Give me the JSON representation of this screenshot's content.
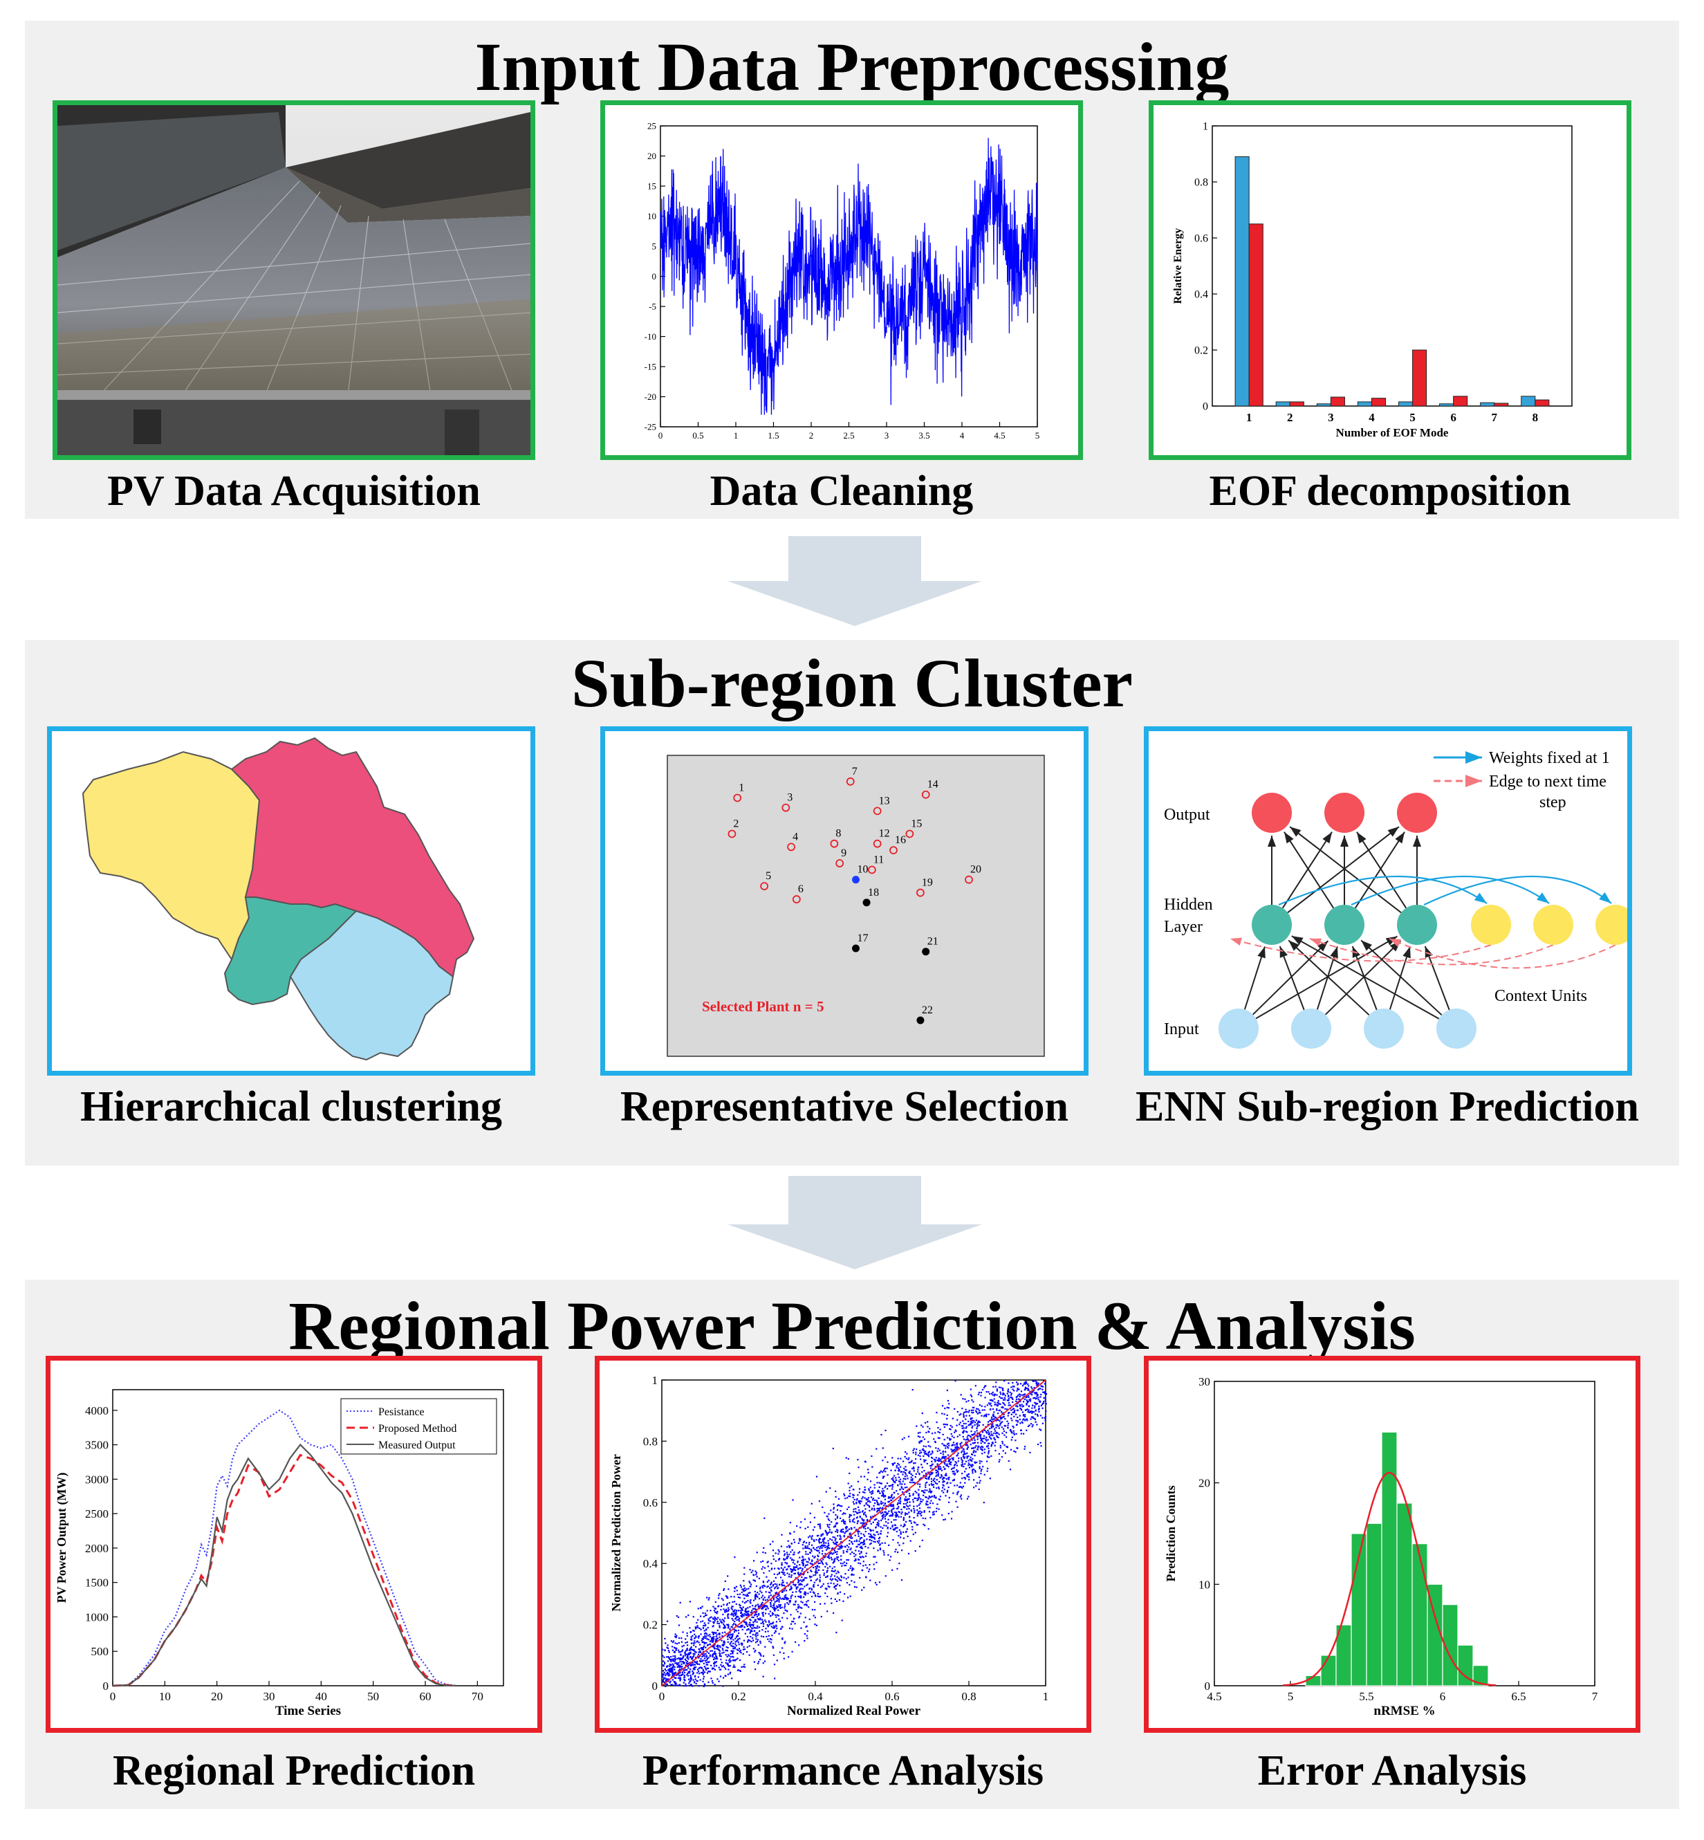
{
  "sections": {
    "preprocessing": {
      "title": "Input Data Preprocessing",
      "captions": [
        "PV Data Acquisition",
        "Data Cleaning",
        "EOF decomposition"
      ]
    },
    "cluster": {
      "title": "Sub-region Cluster",
      "captions": [
        "Hierarchical clustering",
        "Representative Selection",
        "ENN Sub-region Prediction"
      ]
    },
    "prediction": {
      "title": "Regional Power Prediction & Analysis",
      "captions": [
        "Regional Prediction",
        "Performance Analysis",
        "Error Analysis"
      ]
    }
  },
  "colors": {
    "green_border": "#21b14b",
    "blue_border": "#22aee8",
    "red_border": "#e8202a",
    "arrow": "#d5dee7",
    "section_bg": "#f0f0f0"
  },
  "cleaning_chart": {
    "type": "line",
    "x_ticks": [
      "0",
      "0.5",
      "1",
      "1.5",
      "2",
      "2.5",
      "3",
      "3.5",
      "4",
      "4.5",
      "5"
    ],
    "y_ticks": [
      "25",
      "20",
      "15",
      "10",
      "5",
      "0",
      "-5",
      "-10",
      "-15",
      "-20",
      "-25"
    ],
    "xlim": [
      0,
      5
    ],
    "ylim": [
      -25,
      25
    ],
    "series_color": "#0000ff"
  },
  "eof_chart": {
    "type": "bar",
    "categories": [
      "1",
      "2",
      "3",
      "4",
      "5",
      "6",
      "7",
      "8"
    ],
    "series": [
      {
        "color": "#36a2d8",
        "values": [
          0.89,
          0.015,
          0.008,
          0.015,
          0.015,
          0.008,
          0.012,
          0.035
        ]
      },
      {
        "color": "#e8202a",
        "values": [
          0.65,
          0.015,
          0.032,
          0.028,
          0.2,
          0.035,
          0.01,
          0.022
        ]
      }
    ],
    "y_ticks": [
      "0",
      "0.2",
      "0.4",
      "0.6",
      "0.8",
      "1"
    ],
    "ylim": [
      0,
      1
    ],
    "xlabel": "Number of EOF Mode",
    "ylabel": "Relative Energy"
  },
  "map_regions": [
    {
      "name": "north-west",
      "color": "#fde87b"
    },
    {
      "name": "north-east",
      "color": "#ec4f7c"
    },
    {
      "name": "center",
      "color": "#4bb9a8"
    },
    {
      "name": "south-east",
      "color": "#a8dcf2"
    }
  ],
  "selection_chart": {
    "type": "scatter",
    "annotation": "Selected Plant n = 5",
    "plants": [
      {
        "id": "1",
        "x": 1.3,
        "y": 7.9,
        "kind": "normal"
      },
      {
        "id": "2",
        "x": 1.2,
        "y": 6.8,
        "kind": "normal"
      },
      {
        "id": "3",
        "x": 2.2,
        "y": 7.6,
        "kind": "normal"
      },
      {
        "id": "4",
        "x": 2.3,
        "y": 6.4,
        "kind": "normal"
      },
      {
        "id": "5",
        "x": 1.8,
        "y": 5.2,
        "kind": "normal"
      },
      {
        "id": "6",
        "x": 2.4,
        "y": 4.8,
        "kind": "normal"
      },
      {
        "id": "7",
        "x": 3.4,
        "y": 8.4,
        "kind": "normal"
      },
      {
        "id": "8",
        "x": 3.1,
        "y": 6.5,
        "kind": "normal"
      },
      {
        "id": "9",
        "x": 3.2,
        "y": 5.9,
        "kind": "normal"
      },
      {
        "id": "10",
        "x": 3.5,
        "y": 5.4,
        "kind": "center"
      },
      {
        "id": "11",
        "x": 3.8,
        "y": 5.7,
        "kind": "normal"
      },
      {
        "id": "12",
        "x": 3.9,
        "y": 6.5,
        "kind": "normal"
      },
      {
        "id": "13",
        "x": 3.9,
        "y": 7.5,
        "kind": "normal"
      },
      {
        "id": "14",
        "x": 4.8,
        "y": 8.0,
        "kind": "normal"
      },
      {
        "id": "15",
        "x": 4.5,
        "y": 6.8,
        "kind": "normal"
      },
      {
        "id": "16",
        "x": 4.2,
        "y": 6.3,
        "kind": "normal"
      },
      {
        "id": "17",
        "x": 3.5,
        "y": 3.3,
        "kind": "selected"
      },
      {
        "id": "18",
        "x": 3.7,
        "y": 4.7,
        "kind": "selected"
      },
      {
        "id": "19",
        "x": 4.7,
        "y": 5.0,
        "kind": "normal"
      },
      {
        "id": "20",
        "x": 5.6,
        "y": 5.4,
        "kind": "normal"
      },
      {
        "id": "21",
        "x": 4.8,
        "y": 3.2,
        "kind": "selected"
      },
      {
        "id": "22",
        "x": 4.7,
        "y": 1.1,
        "kind": "selected"
      }
    ]
  },
  "enn": {
    "legend_weights": "Weights fixed at 1",
    "legend_edge_line1": "Edge to next time",
    "legend_edge_line2": "step",
    "label_output": "Output",
    "label_hidden_line1": "Hidden",
    "label_hidden_line2": "Layer",
    "label_input": "Input",
    "label_context": "Context Units",
    "output_color": "#f4515a",
    "hidden_color": "#4bb9a8",
    "context_color": "#fde55d",
    "input_color": "#b5e0f7"
  },
  "regional_chart": {
    "type": "line",
    "xlabel": "Time Series",
    "ylabel": "PV Power Output (MW)",
    "xlim": [
      0,
      75
    ],
    "ylim": [
      0,
      4300
    ],
    "x_ticks": [
      "0",
      "10",
      "20",
      "30",
      "40",
      "50",
      "60",
      "70"
    ],
    "y_ticks": [
      "0",
      "500",
      "1000",
      "1500",
      "2000",
      "2500",
      "3000",
      "3500",
      "4000"
    ],
    "series": [
      {
        "name": "Pesistance",
        "color": "#3b3bff",
        "style": "dotted",
        "x": [
          0,
          3,
          5,
          8,
          10,
          12,
          14,
          16,
          17,
          18,
          19,
          20,
          21,
          22,
          23,
          24,
          26,
          28,
          30,
          32,
          34,
          36,
          38,
          40,
          42,
          44,
          46,
          48,
          50,
          52,
          54,
          56,
          58,
          60,
          62,
          64,
          66
        ],
        "y": [
          0,
          10,
          150,
          450,
          800,
          1000,
          1400,
          1700,
          2050,
          1900,
          2300,
          2900,
          3050,
          2900,
          3300,
          3500,
          3650,
          3800,
          3900,
          4000,
          3900,
          3600,
          3500,
          3450,
          3500,
          3300,
          3000,
          2500,
          2100,
          1700,
          1300,
          900,
          500,
          300,
          80,
          20,
          0
        ]
      },
      {
        "name": "Proposed Method",
        "color": "#e8202a",
        "style": "dashed",
        "x": [
          0,
          3,
          5,
          8,
          10,
          12,
          14,
          16,
          17,
          18,
          19,
          20,
          21,
          22,
          23,
          24,
          26,
          28,
          30,
          32,
          34,
          36,
          38,
          40,
          42,
          44,
          46,
          48,
          50,
          52,
          54,
          56,
          58,
          60,
          62,
          64,
          66
        ],
        "y": [
          0,
          10,
          120,
          380,
          650,
          850,
          1100,
          1400,
          1600,
          1500,
          1800,
          2300,
          2100,
          2500,
          2700,
          2800,
          3200,
          3100,
          2750,
          2850,
          3100,
          3350,
          3300,
          3200,
          3050,
          2950,
          2700,
          2300,
          1900,
          1500,
          1100,
          700,
          350,
          150,
          40,
          10,
          0
        ]
      },
      {
        "name": "Measured Output",
        "color": "#555555",
        "style": "solid",
        "x": [
          0,
          3,
          5,
          8,
          10,
          12,
          14,
          16,
          17,
          18,
          19,
          20,
          21,
          22,
          23,
          24,
          26,
          28,
          30,
          32,
          34,
          36,
          38,
          40,
          42,
          44,
          46,
          48,
          50,
          52,
          54,
          56,
          58,
          60,
          62,
          64,
          66
        ],
        "y": [
          0,
          10,
          120,
          380,
          650,
          850,
          1100,
          1400,
          1550,
          1450,
          1900,
          2450,
          2250,
          2700,
          2900,
          3000,
          3300,
          3100,
          2850,
          3000,
          3300,
          3500,
          3350,
          3150,
          2950,
          2800,
          2500,
          2100,
          1700,
          1350,
          1000,
          650,
          300,
          120,
          30,
          5,
          0
        ]
      }
    ]
  },
  "performance_chart": {
    "type": "scatter",
    "xlabel": "Normalized Real Power",
    "ylabel": "Normalized Prediction Power",
    "xlim": [
      0,
      1
    ],
    "ylim": [
      0,
      1
    ],
    "x_ticks": [
      "0",
      "0.2",
      "0.4",
      "0.6",
      "0.8",
      "1"
    ],
    "y_ticks": [
      "0",
      "0.2",
      "0.4",
      "0.6",
      "0.8",
      "1"
    ],
    "point_color": "#0000ff",
    "fit_color": "#e8202a",
    "n_points": 4500,
    "spread": 0.06
  },
  "error_chart": {
    "type": "bar",
    "xlabel": "nRMSE %",
    "ylabel": "Prediction Counts",
    "xlim": [
      4.5,
      7
    ],
    "ylim": [
      0,
      30
    ],
    "x_ticks": [
      "4.5",
      "5",
      "5.5",
      "6",
      "6.5",
      "7"
    ],
    "y_ticks": [
      "0",
      "10",
      "20",
      "30"
    ],
    "bin_edges": [
      5.1,
      5.2,
      5.3,
      5.4,
      5.5,
      5.6,
      5.7,
      5.8,
      5.9,
      6.0,
      6.1,
      6.2,
      6.3
    ],
    "counts": [
      1,
      3,
      6,
      15,
      16,
      25,
      18,
      14,
      10,
      8,
      4,
      2
    ],
    "bar_color": "#1fb84a",
    "fit_color": "#e8202a",
    "fit_mean": 5.65,
    "fit_sd": 0.2,
    "fit_peak": 21
  }
}
